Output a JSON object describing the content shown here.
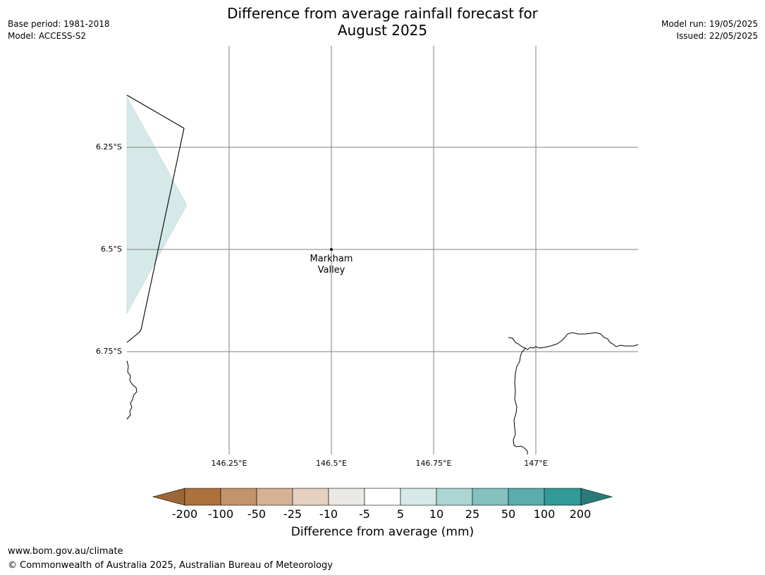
{
  "header": {
    "title_line1": "Difference from average rainfall forecast for",
    "title_line2": "August 2025",
    "base_period": "Base period: 1981-2018",
    "model": "Model: ACCESS-S2",
    "model_run": "Model run: 19/05/2025",
    "issued": "Issued: 22/05/2025"
  },
  "map": {
    "lat_labels": [
      "6.25°S",
      "6.5°S",
      "6.75°S"
    ],
    "lon_labels": [
      "146.25°E",
      "146.5°E",
      "146.75°E",
      "147°E"
    ],
    "place": {
      "name_line1": "Markham",
      "name_line2": "Valley"
    },
    "shaded_category": "5 to 10",
    "colors": {
      "shade": "#d5e9e8",
      "grid": "#808080",
      "coast": "#000000"
    }
  },
  "colorbar": {
    "title": "Difference from average (mm)",
    "labels": [
      "-200",
      "-100",
      "-50",
      "-25",
      "-10",
      "-5",
      "5",
      "10",
      "25",
      "50",
      "100",
      "200"
    ],
    "colors": [
      "#9c6535",
      "#ad723c",
      "#c29469",
      "#d4b293",
      "#e6d1c0",
      "#ebe9e6",
      "#ffffff",
      "#d5e9e8",
      "#acd6d4",
      "#84c1bf",
      "#5aadad",
      "#329a99",
      "#297b7a"
    ]
  },
  "footer": {
    "url": "www.bom.gov.au/climate",
    "copyright": "© Commonwealth of Australia 2025, Australian Bureau of Meteorology"
  }
}
